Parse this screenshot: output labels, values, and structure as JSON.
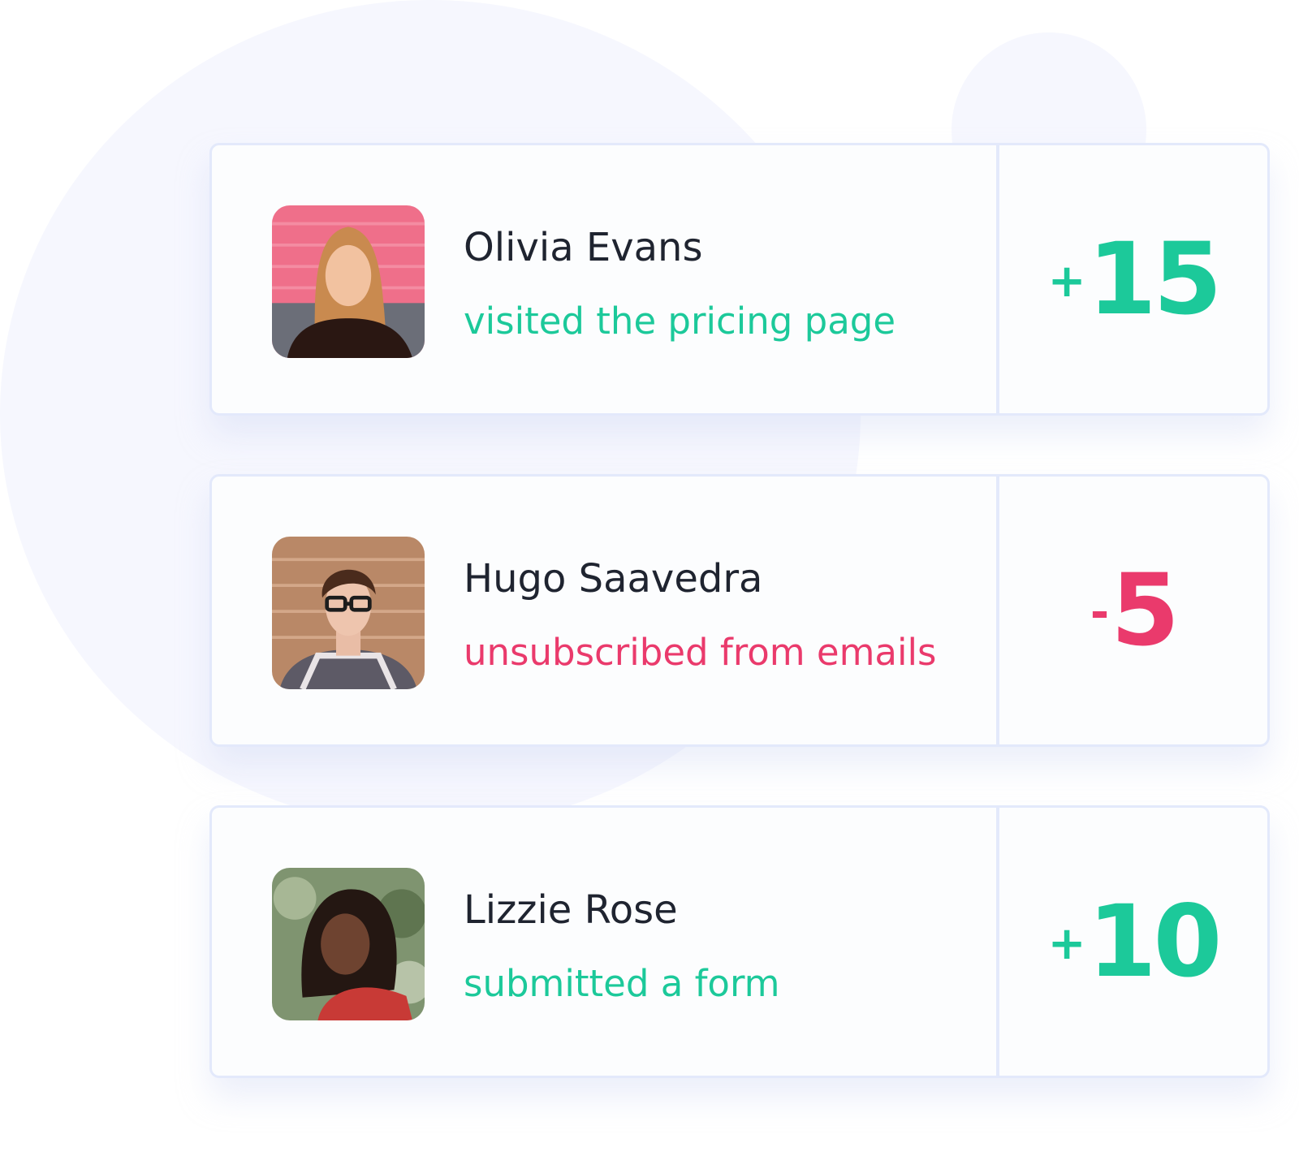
{
  "colors": {
    "positive": "#1cc99a",
    "negative": "#ea3a6c",
    "name": "#1f2430"
  },
  "events": [
    {
      "name": "Olivia Evans",
      "action": "visited the pricing page",
      "sign": "+",
      "value": "15",
      "tone": "positive",
      "avatar": "woman-pink-wall-photo"
    },
    {
      "name": "Hugo Saavedra",
      "action": "unsubscribed from emails",
      "sign": "-",
      "value": "5",
      "tone": "negative",
      "avatar": "man-glasses-brick-wall-photo"
    },
    {
      "name": "Lizzie Rose",
      "action": "submitted a form",
      "sign": "+",
      "value": "10",
      "tone": "positive",
      "avatar": "woman-red-top-foliage-photo"
    }
  ]
}
